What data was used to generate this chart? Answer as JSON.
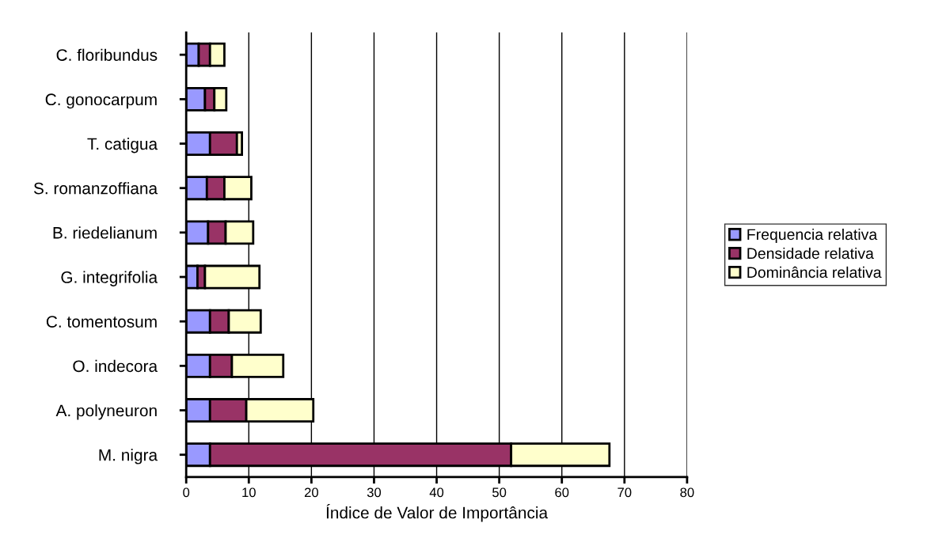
{
  "chart_data": {
    "type": "bar",
    "orientation": "horizontal",
    "stacked": true,
    "xlabel": "Índice de Valor de Importância",
    "categories": [
      "C. floribundus",
      "C. gonocarpum",
      "T. catigua",
      "S. romanzoffiana",
      "B. riedelianum",
      "G. integrifolia",
      "C. tomentosum",
      "O. indecora",
      "A. polyneuron",
      "M. nigra"
    ],
    "series": [
      {
        "name": "Frequencia relativa",
        "color": "#9999ff",
        "values": [
          2.0,
          3.0,
          3.8,
          3.3,
          3.5,
          1.8,
          3.8,
          3.8,
          3.8,
          3.8
        ]
      },
      {
        "name": "Densidade relativa",
        "color": "#993366",
        "values": [
          1.8,
          1.5,
          4.3,
          2.8,
          2.8,
          1.2,
          3.0,
          3.5,
          5.8,
          48.1
        ]
      },
      {
        "name": "Dominância relativa",
        "color": "#ffffcc",
        "values": [
          2.3,
          1.9,
          0.8,
          4.3,
          4.4,
          8.7,
          5.1,
          8.2,
          10.7,
          15.7
        ]
      }
    ],
    "xlim": [
      0,
      80
    ],
    "xticks": [
      0,
      10,
      20,
      30,
      40,
      50,
      60,
      70,
      80
    ],
    "grid": "x",
    "legend": "right"
  }
}
